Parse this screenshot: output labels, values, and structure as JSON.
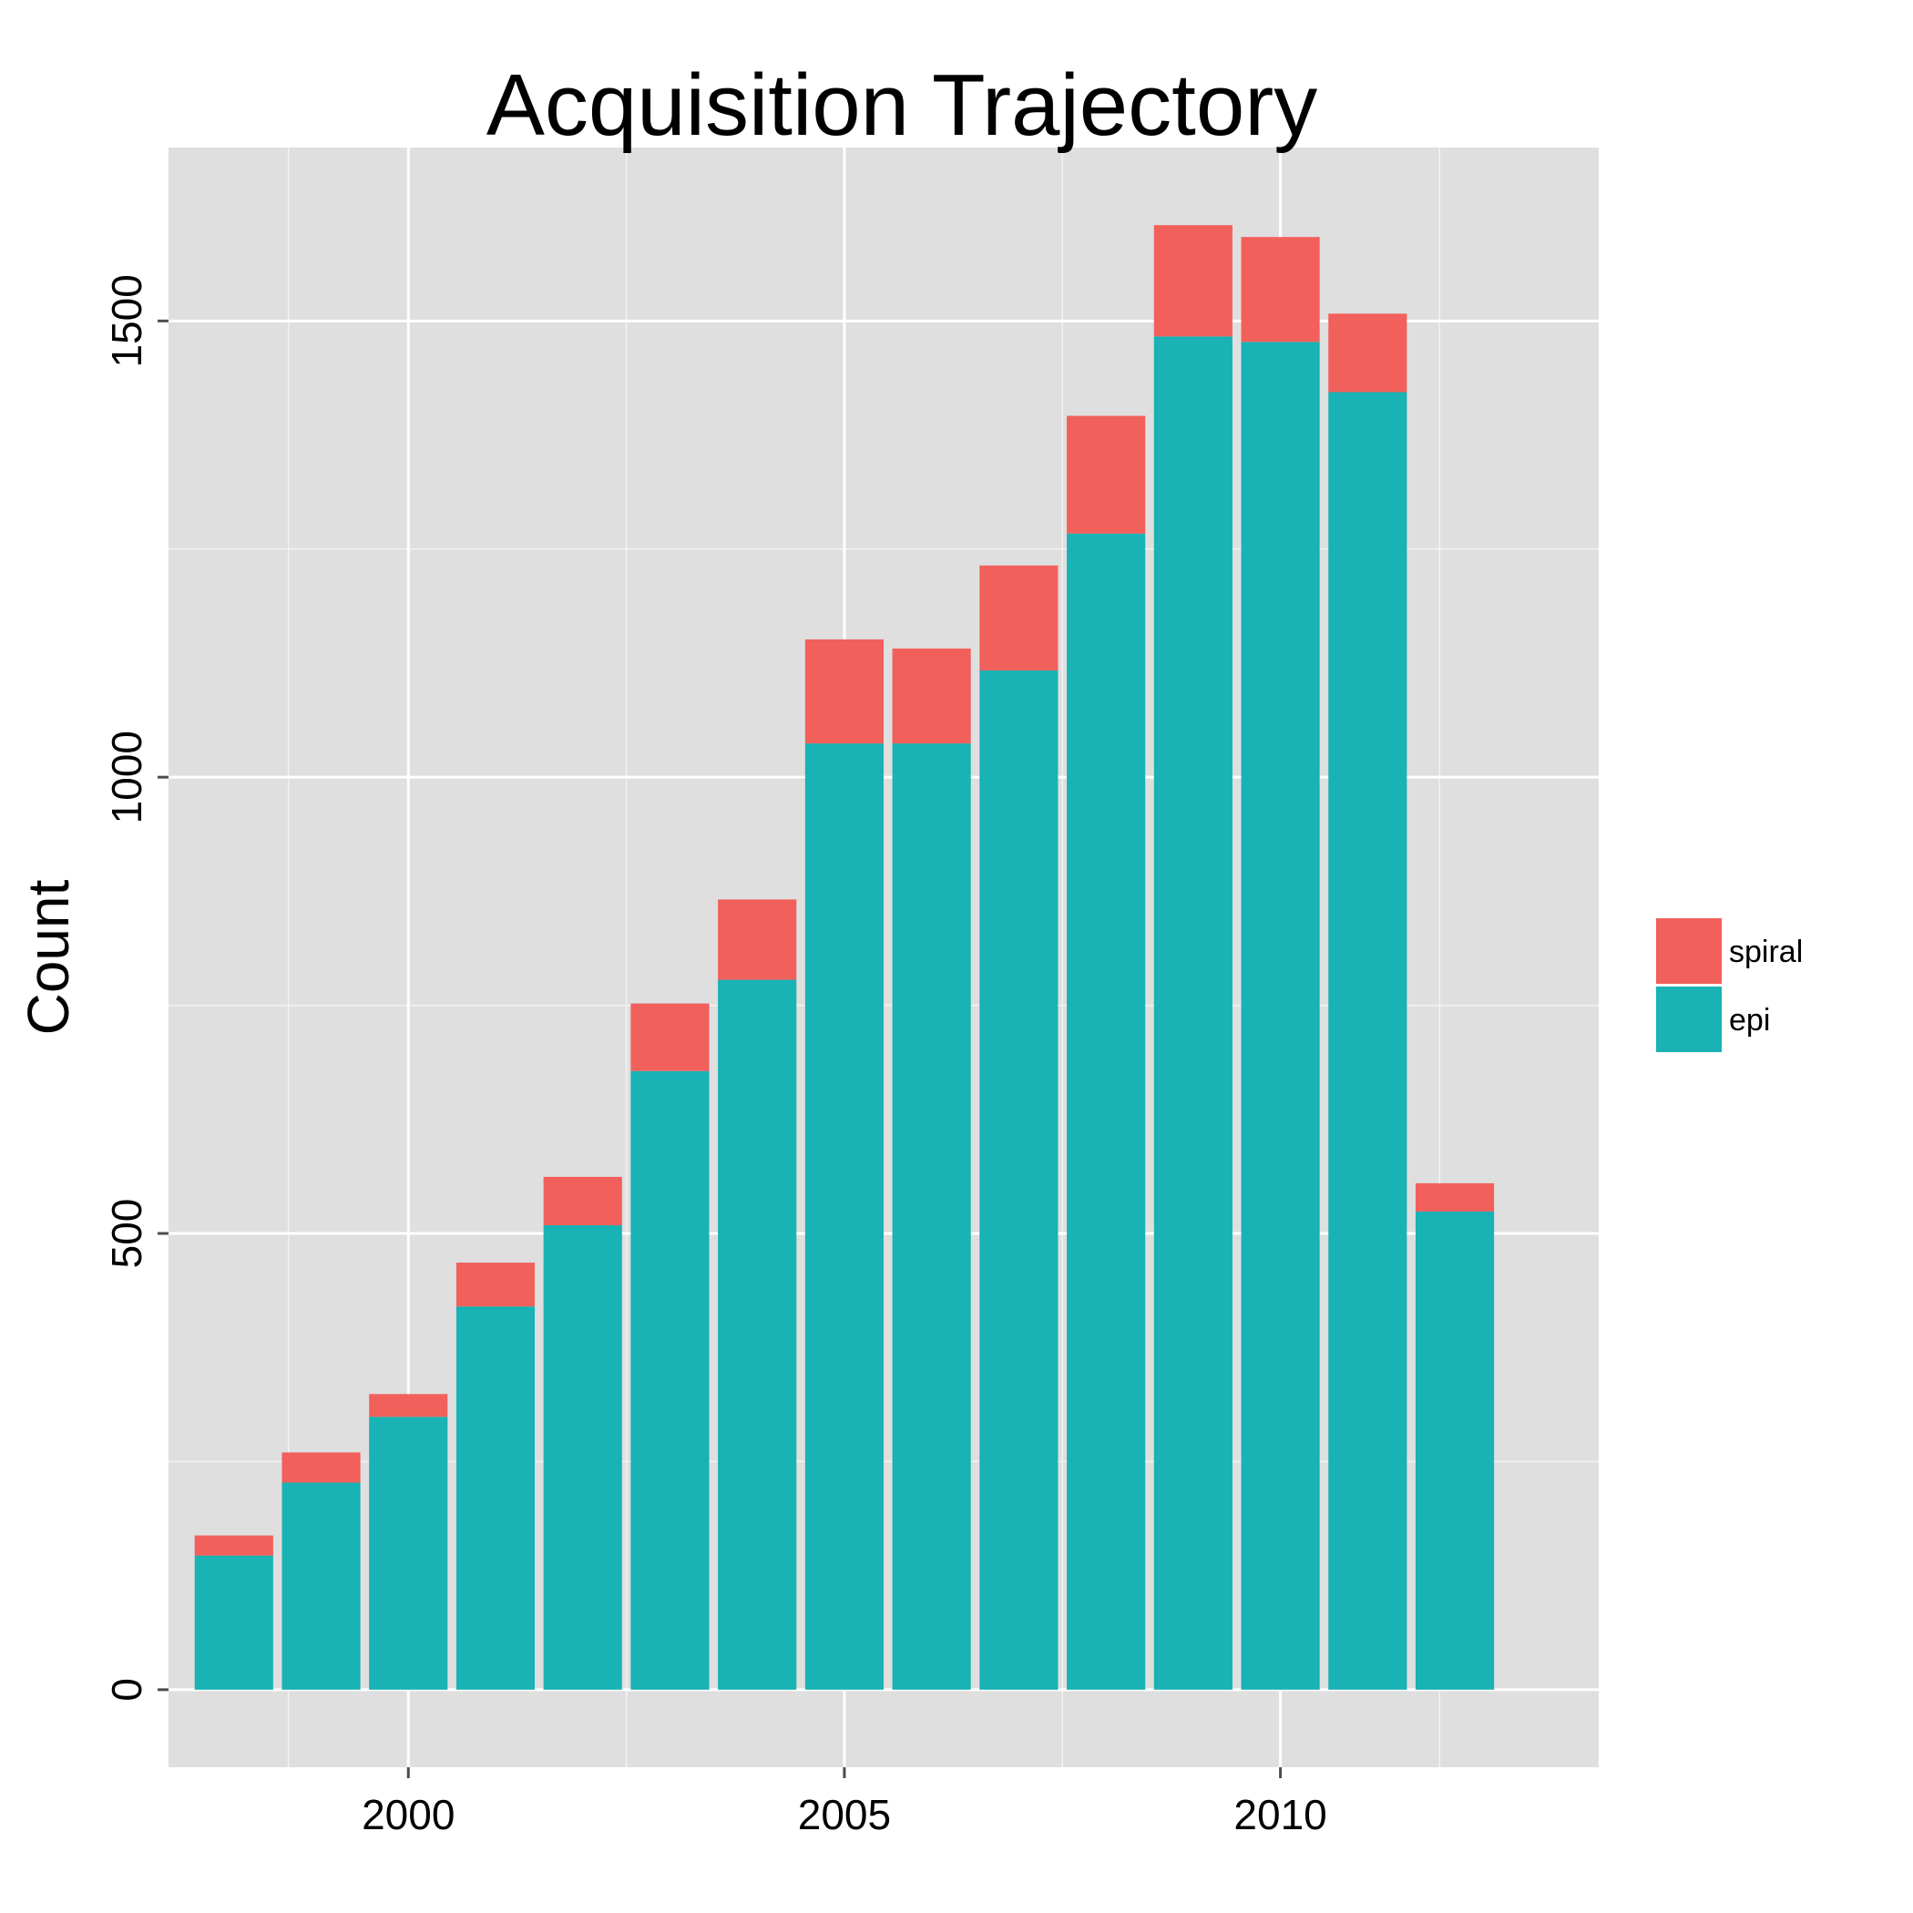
{
  "chart_data": {
    "type": "bar",
    "stacked": true,
    "title": "Acquisition Trajectory",
    "xlabel": "",
    "ylabel": "Count",
    "x": [
      1998,
      1999,
      2000,
      2001,
      2002,
      2003,
      2004,
      2005,
      2006,
      2007,
      2008,
      2009,
      2010,
      2011,
      2012
    ],
    "x_ticks": [
      2000,
      2005,
      2010
    ],
    "x_tick_labels": [
      "2000",
      "2005",
      "2010"
    ],
    "xlim": [
      1997.25,
      2013.65
    ],
    "y_ticks": [
      0,
      500,
      1000,
      1500
    ],
    "y_tick_labels": [
      "0",
      "500",
      "1000",
      "1500"
    ],
    "ylim": [
      -85,
      1690
    ],
    "grid": true,
    "legend_position": "right",
    "series": [
      {
        "name": "epi",
        "color": "#19b2b5",
        "values": [
          147,
          227,
          299,
          420,
          509,
          678,
          778,
          1037,
          1037,
          1117,
          1267,
          1483,
          1477,
          1422,
          524
        ]
      },
      {
        "name": "spiral",
        "color": "#f2605b",
        "values": [
          22,
          33,
          25,
          48,
          53,
          74,
          88,
          114,
          104,
          115,
          129,
          122,
          115,
          86,
          31
        ]
      }
    ],
    "legend": [
      {
        "label": "spiral",
        "color": "#f2605b"
      },
      {
        "label": "epi",
        "color": "#19b2b5"
      }
    ]
  }
}
